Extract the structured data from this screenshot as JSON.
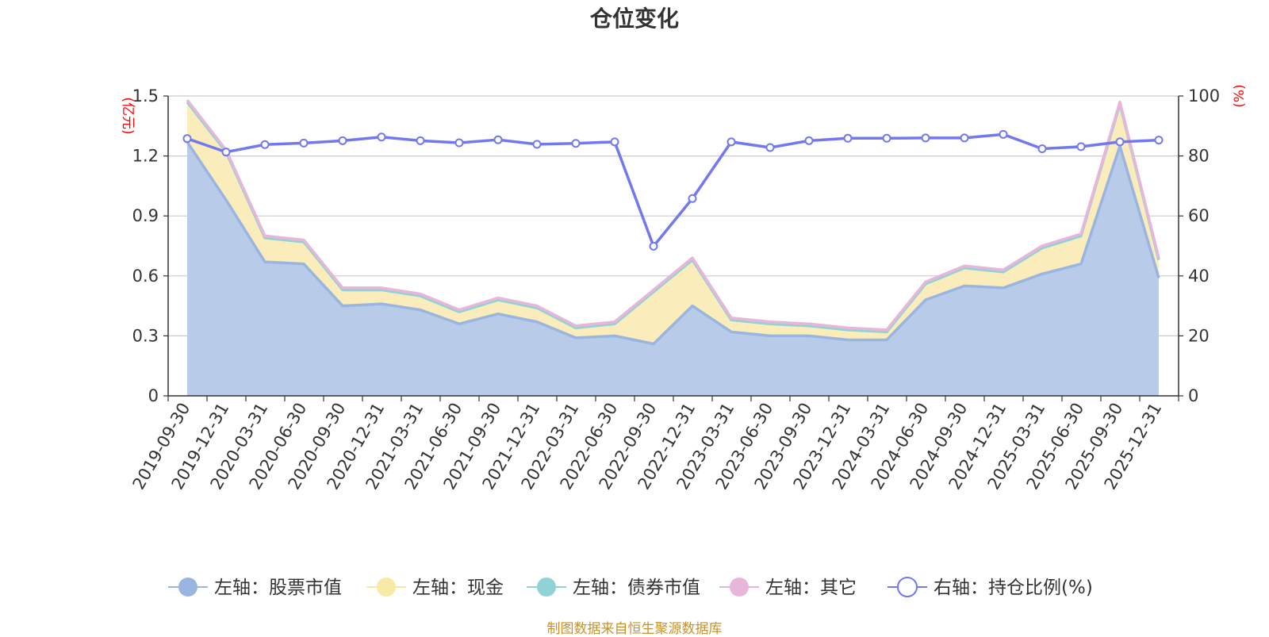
{
  "title": "仓位变化",
  "footer": "制图数据来自恒生聚源数据库",
  "chart_data": {
    "type": "area",
    "title": "仓位变化",
    "left_unit": "(亿元)",
    "right_unit": "(%)",
    "x": [
      "2019-09-30",
      "2019-12-31",
      "2020-03-31",
      "2020-06-30",
      "2020-09-30",
      "2020-12-31",
      "2021-03-31",
      "2021-06-30",
      "2021-09-30",
      "2021-12-31",
      "2022-03-31",
      "2022-06-30",
      "2022-09-30",
      "2022-12-31",
      "2023-03-31",
      "2023-06-30",
      "2023-09-30",
      "2023-12-31",
      "2024-03-31",
      "2024-06-30",
      "2024-09-30",
      "2024-12-31",
      "2025-03-31",
      "2025-06-30",
      "2025-09-30",
      "2025-12-31"
    ],
    "left_axis": {
      "min": 0,
      "max": 1.5,
      "ticks": [
        "0",
        "0.3",
        "0.6",
        "0.9",
        "1.2",
        "1.5"
      ]
    },
    "right_axis": {
      "min": 0,
      "max": 100,
      "ticks": [
        "0",
        "20",
        "40",
        "60",
        "80",
        "100"
      ]
    },
    "grid": true,
    "legend_position": "bottom",
    "series": [
      {
        "name": "左轴：股票市值",
        "axis": "left",
        "color": "#9ab5e0",
        "fill": "#b8cbe9",
        "values": [
          1.27,
          0.98,
          0.67,
          0.66,
          0.45,
          0.46,
          0.43,
          0.36,
          0.41,
          0.37,
          0.29,
          0.3,
          0.26,
          0.45,
          0.32,
          0.3,
          0.3,
          0.28,
          0.28,
          0.48,
          0.55,
          0.54,
          0.61,
          0.66,
          1.25,
          0.59
        ]
      },
      {
        "name": "左轴：现金",
        "axis": "left",
        "color": "#f9e9a6",
        "fill": "#faedbb",
        "values": [
          0.2,
          0.24,
          0.12,
          0.11,
          0.08,
          0.07,
          0.07,
          0.06,
          0.07,
          0.07,
          0.05,
          0.06,
          0.26,
          0.23,
          0.06,
          0.06,
          0.05,
          0.05,
          0.04,
          0.08,
          0.09,
          0.08,
          0.13,
          0.14,
          0.21,
          0.09
        ]
      },
      {
        "name": "左轴：债券市值",
        "axis": "left",
        "color": "#8fd3d6",
        "fill": "#8fd3d6",
        "values": [
          0,
          0,
          0,
          0,
          0,
          0,
          0,
          0,
          0,
          0,
          0,
          0,
          0,
          0,
          0,
          0,
          0,
          0,
          0,
          0,
          0,
          0,
          0,
          0,
          0,
          0
        ]
      },
      {
        "name": "左轴：其它",
        "axis": "left",
        "color": "#e8b6d8",
        "fill": "#e8b6d8",
        "values": [
          0.01,
          0.01,
          0.01,
          0.01,
          0.01,
          0.01,
          0.01,
          0.01,
          0.01,
          0.01,
          0.01,
          0.01,
          0.01,
          0.01,
          0.01,
          0.01,
          0.01,
          0.01,
          0.01,
          0.01,
          0.01,
          0.01,
          0.01,
          0.01,
          0.01,
          0.01
        ]
      },
      {
        "name": "右轴：持仓比例(%)",
        "axis": "right",
        "color": "#7279ee",
        "fill": "#ffffff",
        "values": [
          85.8,
          81.3,
          83.8,
          84.3,
          85.1,
          86.3,
          85.1,
          84.4,
          85.4,
          83.9,
          84.2,
          84.7,
          49.9,
          65.8,
          84.7,
          82.8,
          85.1,
          85.9,
          85.9,
          86.0,
          86.0,
          87.2,
          82.4,
          83.1,
          84.7,
          85.3
        ]
      }
    ]
  }
}
